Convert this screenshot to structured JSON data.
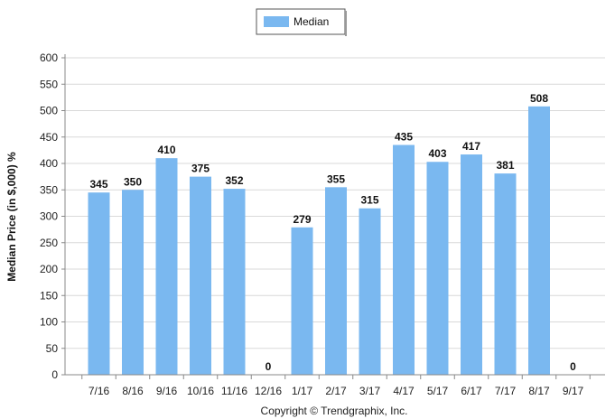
{
  "chart_data": {
    "type": "bar",
    "categories": [
      "7/16",
      "8/16",
      "9/16",
      "10/16",
      "11/16",
      "12/16",
      "1/17",
      "2/17",
      "3/17",
      "4/17",
      "5/17",
      "6/17",
      "7/17",
      "8/17",
      "9/17"
    ],
    "series": [
      {
        "name": "Median",
        "values": [
          345,
          350,
          410,
          375,
          352,
          0,
          279,
          355,
          315,
          435,
          403,
          417,
          381,
          508,
          0
        ]
      }
    ],
    "ylabel": "Median Price (in $,000) %",
    "ylim": [
      0,
      600
    ],
    "yticks": [
      0,
      50,
      100,
      150,
      200,
      250,
      300,
      350,
      400,
      450,
      500,
      550,
      600
    ],
    "grid": true,
    "legend_position": "top-center",
    "bar_color": "#7ab8f0"
  },
  "footer": {
    "copyright": "Copyright © Trendgraphix, Inc."
  }
}
